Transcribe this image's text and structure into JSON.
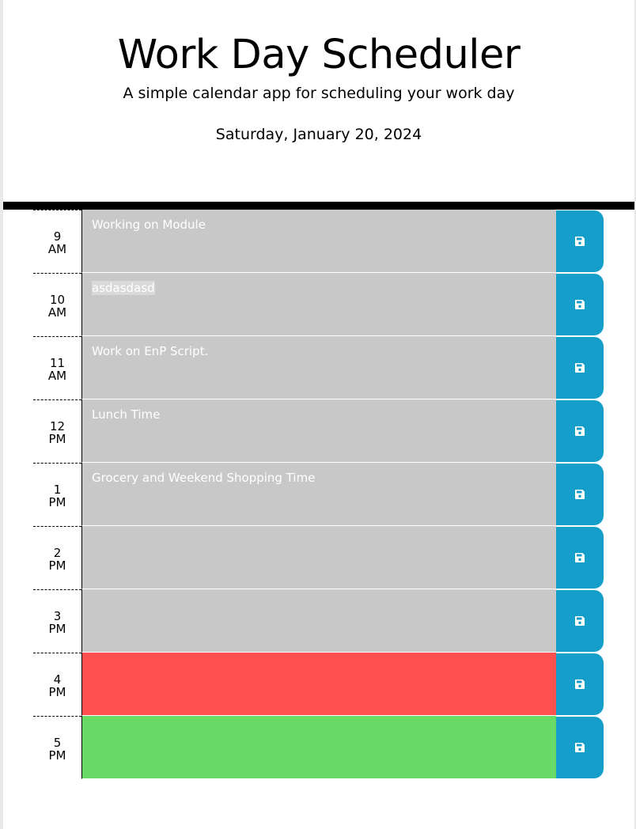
{
  "header": {
    "title": "Work Day Scheduler",
    "subtitle": "A simple calendar app for scheduling your work day",
    "current_date": "Saturday, January 20, 2024"
  },
  "colors": {
    "past": "#c8c8c8",
    "present": "#ff5250",
    "future": "#67db65",
    "save_button": "#169ecb",
    "divider": "#000000"
  },
  "icons": {
    "save": "floppy-disk-icon"
  },
  "time_blocks": [
    {
      "hour": "9",
      "meridiem": "AM",
      "text": "Working on Module",
      "state": "past"
    },
    {
      "hour": "10",
      "meridiem": "AM",
      "text": "asdasdasd",
      "state": "past"
    },
    {
      "hour": "11",
      "meridiem": "AM",
      "text": "Work on EnP Script.",
      "state": "past"
    },
    {
      "hour": "12",
      "meridiem": "PM",
      "text": "Lunch Time",
      "state": "past"
    },
    {
      "hour": "1",
      "meridiem": "PM",
      "text": "Grocery and Weekend Shopping Time",
      "state": "past"
    },
    {
      "hour": "2",
      "meridiem": "PM",
      "text": "",
      "state": "past"
    },
    {
      "hour": "3",
      "meridiem": "PM",
      "text": "",
      "state": "past"
    },
    {
      "hour": "4",
      "meridiem": "PM",
      "text": "",
      "state": "present"
    },
    {
      "hour": "5",
      "meridiem": "PM",
      "text": "",
      "state": "future"
    }
  ]
}
